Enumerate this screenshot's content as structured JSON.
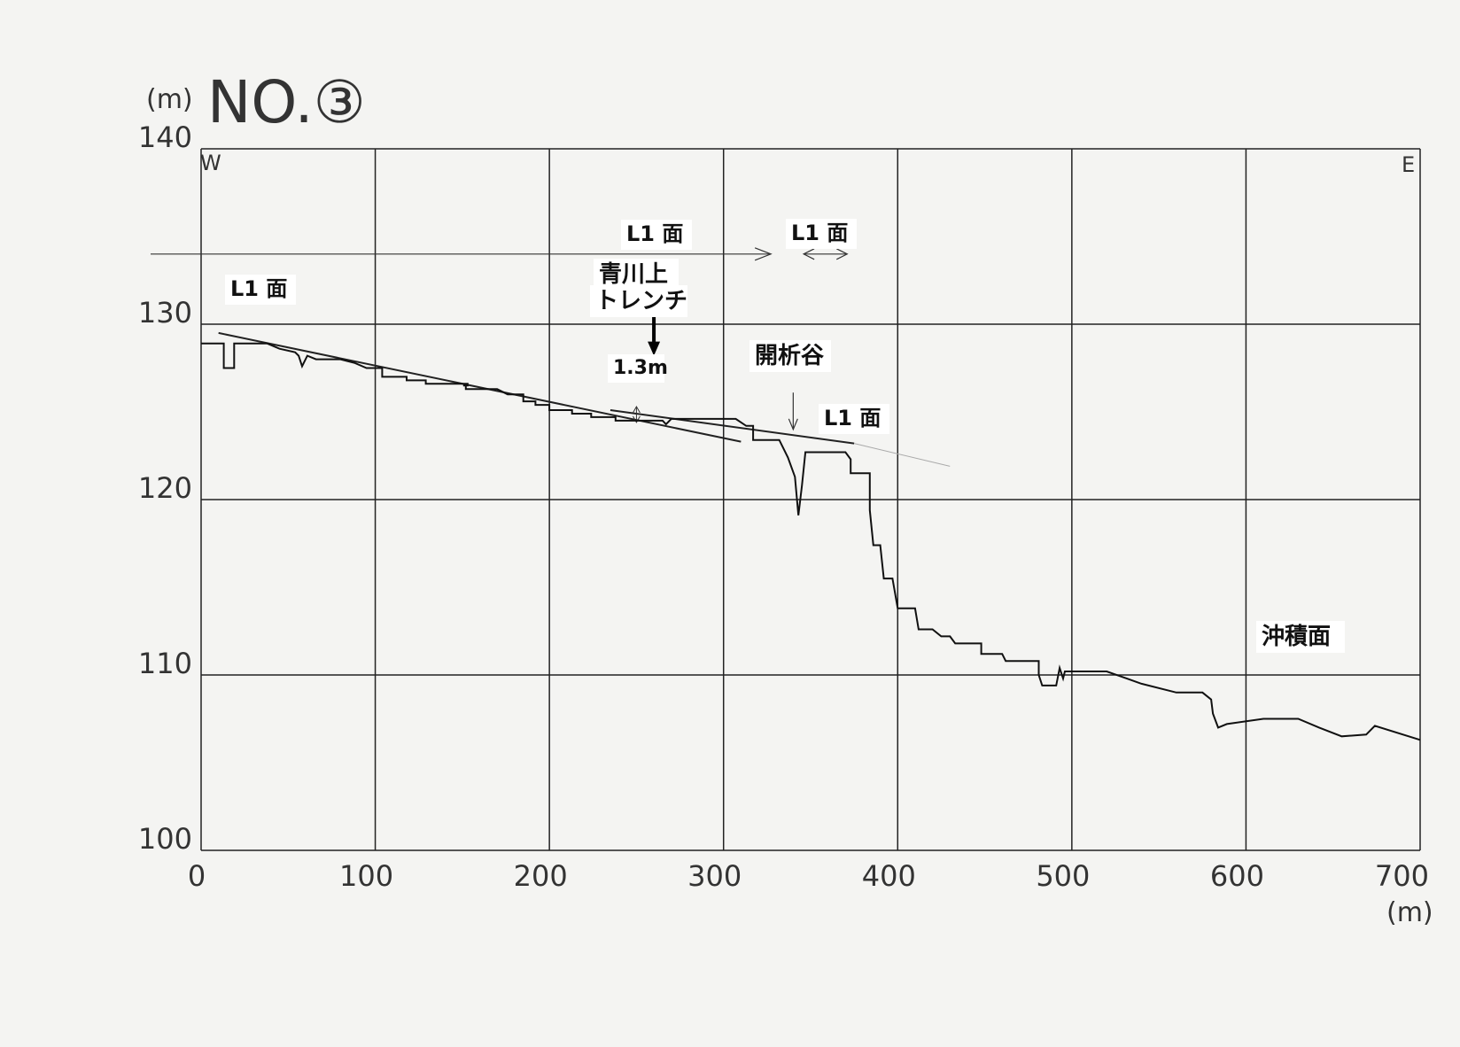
{
  "chart_data": {
    "type": "line",
    "title": "NO.③",
    "ylabel": "(m)",
    "xlabel": "(m)",
    "direction_left": "W",
    "direction_right": "E",
    "xlim": [
      0,
      700
    ],
    "ylim": [
      100,
      140
    ],
    "x_ticks": [
      0,
      100,
      200,
      300,
      400,
      500,
      600,
      700
    ],
    "y_ticks": [
      100,
      110,
      120,
      130,
      140
    ],
    "grid": true,
    "series": [
      {
        "points": [
          [
            0,
            128.9
          ],
          [
            13,
            128.9
          ],
          [
            13,
            127.5
          ],
          [
            19,
            127.5
          ],
          [
            19,
            128.9
          ],
          [
            38,
            128.9
          ],
          [
            45,
            128.6
          ],
          [
            54,
            128.4
          ],
          [
            56,
            128.2
          ],
          [
            58,
            127.6
          ],
          [
            61,
            128.2
          ],
          [
            66,
            128.0
          ],
          [
            80,
            128.0
          ],
          [
            88,
            127.8
          ],
          [
            95,
            127.5
          ],
          [
            104,
            127.5
          ],
          [
            104,
            127.0
          ],
          [
            118,
            127.0
          ],
          [
            118,
            126.8
          ],
          [
            129,
            126.8
          ],
          [
            129,
            126.6
          ],
          [
            152,
            126.6
          ],
          [
            152,
            126.6
          ],
          [
            153,
            126.6
          ],
          [
            153,
            126.5
          ],
          [
            151,
            126.5
          ],
          [
            151,
            126.6
          ],
          [
            152,
            126.6
          ],
          [
            152,
            126.3
          ],
          [
            170,
            126.3
          ],
          [
            176,
            126.0
          ],
          [
            185,
            126.0
          ],
          [
            185,
            125.6
          ],
          [
            192,
            125.6
          ],
          [
            192,
            125.4
          ],
          [
            200,
            125.4
          ],
          [
            200,
            125.1
          ],
          [
            213,
            125.1
          ],
          [
            213,
            124.9
          ],
          [
            224,
            124.9
          ],
          [
            224,
            124.7
          ],
          [
            238,
            124.7
          ],
          [
            238,
            124.5
          ],
          [
            255,
            124.5
          ],
          [
            265,
            124.5
          ],
          [
            267,
            124.3
          ],
          [
            270,
            124.6
          ],
          [
            285,
            124.6
          ],
          [
            293,
            124.6
          ],
          [
            307,
            124.6
          ],
          [
            313,
            124.2
          ],
          [
            317,
            124.2
          ],
          [
            317,
            123.4
          ],
          [
            332,
            123.4
          ],
          [
            337,
            122.4
          ],
          [
            341,
            121.3
          ],
          [
            343,
            119.1
          ],
          [
            345,
            120.8
          ],
          [
            347,
            122.7
          ],
          [
            370,
            122.7
          ],
          [
            373,
            122.3
          ],
          [
            373,
            121.5
          ],
          [
            384,
            121.5
          ],
          [
            384,
            119.4
          ],
          [
            386,
            117.4
          ],
          [
            390,
            117.4
          ],
          [
            392,
            115.5
          ],
          [
            397,
            115.5
          ],
          [
            400,
            113.8
          ],
          [
            410,
            113.8
          ],
          [
            412,
            112.6
          ],
          [
            420,
            112.6
          ],
          [
            425,
            112.2
          ],
          [
            430,
            112.2
          ],
          [
            433,
            111.8
          ],
          [
            448,
            111.8
          ],
          [
            448,
            111.2
          ],
          [
            460,
            111.2
          ],
          [
            462,
            110.8
          ],
          [
            481,
            110.8
          ],
          [
            481,
            110.0
          ],
          [
            483,
            109.4
          ],
          [
            491,
            109.4
          ],
          [
            493,
            110.4
          ],
          [
            495,
            109.8
          ],
          [
            496,
            110.2
          ],
          [
            520,
            110.2
          ],
          [
            540,
            109.5
          ],
          [
            560,
            109.0
          ],
          [
            575,
            109.0
          ],
          [
            580,
            108.6
          ],
          [
            581,
            107.8
          ],
          [
            584,
            107.0
          ],
          [
            589,
            107.2
          ],
          [
            610,
            107.5
          ],
          [
            630,
            107.5
          ],
          [
            642,
            107.0
          ],
          [
            655,
            106.5
          ],
          [
            669,
            106.6
          ],
          [
            674,
            107.1
          ],
          [
            700,
            106.3
          ]
        ]
      }
    ],
    "annotations": {
      "l1_surface_label": "L1 面",
      "trench_label_line1": "青川上",
      "trench_label_line2": "トレンチ",
      "offset_label": "1.3m",
      "valley_label": "開析谷",
      "alluvial_label": "沖積面"
    },
    "extra_marks": {
      "upper_surface_line": [
        [
          235,
          125.1
        ],
        [
          375,
          123.2
        ]
      ],
      "lower_surface_line": [
        [
          10,
          129.5
        ],
        [
          310,
          123.3
        ]
      ],
      "faint_extension_line": [
        [
          375,
          123.2
        ],
        [
          430,
          121.9
        ]
      ],
      "offset_arrow_x": 250,
      "offset_arrow_y": [
        125.3,
        124.4
      ],
      "l1_arrow_y": 134.0,
      "l1_arrow_x": [
        -30,
        317
      ],
      "l1_double_arrow_x": [
        346,
        371
      ],
      "valley_arrow_x": 340,
      "valley_arrow_y": [
        126.1,
        124.0
      ],
      "trench_arrow_x": 260,
      "trench_arrow_y": [
        130.6,
        128.2
      ]
    }
  }
}
